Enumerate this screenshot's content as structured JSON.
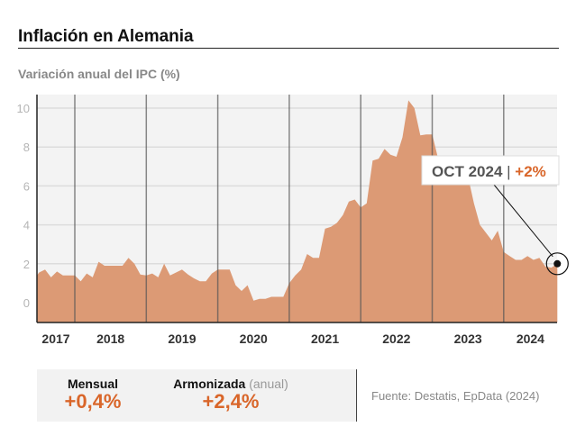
{
  "title": "Inflación en Alemania",
  "subtitle": "Variación anual del IPC (%)",
  "chart_data": {
    "type": "area",
    "title": "Inflación en Alemania",
    "subtitle": "Variación anual del IPC (%)",
    "ylim": [
      -1,
      11
    ],
    "yticks": [
      0,
      2,
      4,
      6,
      8,
      10
    ],
    "xticks": [
      "2017",
      "2018",
      "2019",
      "2020",
      "2021",
      "2022",
      "2023",
      "2024"
    ],
    "grid": true,
    "color": "#dc9a75",
    "x": [
      "2017-06",
      "2017-07",
      "2017-08",
      "2017-09",
      "2017-10",
      "2017-11",
      "2017-12",
      "2018-01",
      "2018-02",
      "2018-03",
      "2018-04",
      "2018-05",
      "2018-06",
      "2018-07",
      "2018-08",
      "2018-09",
      "2018-10",
      "2018-11",
      "2018-12",
      "2019-01",
      "2019-02",
      "2019-03",
      "2019-04",
      "2019-05",
      "2019-06",
      "2019-07",
      "2019-08",
      "2019-09",
      "2019-10",
      "2019-11",
      "2019-12",
      "2020-01",
      "2020-02",
      "2020-03",
      "2020-04",
      "2020-05",
      "2020-06",
      "2020-07",
      "2020-08",
      "2020-09",
      "2020-10",
      "2020-11",
      "2020-12",
      "2021-01",
      "2021-02",
      "2021-03",
      "2021-04",
      "2021-05",
      "2021-06",
      "2021-07",
      "2021-08",
      "2021-09",
      "2021-10",
      "2021-11",
      "2021-12",
      "2022-01",
      "2022-02",
      "2022-03",
      "2022-04",
      "2022-05",
      "2022-06",
      "2022-07",
      "2022-08",
      "2022-09",
      "2022-10",
      "2022-11",
      "2022-12",
      "2023-01",
      "2023-02",
      "2023-03",
      "2023-04",
      "2023-05",
      "2023-06",
      "2023-07",
      "2023-08",
      "2023-09",
      "2023-10",
      "2023-11",
      "2023-12",
      "2024-01",
      "2024-02",
      "2024-03",
      "2024-04",
      "2024-05",
      "2024-06",
      "2024-07",
      "2024-08",
      "2024-09",
      "2024-10"
    ],
    "values": [
      1.4,
      1.55,
      1.7,
      1.3,
      1.6,
      1.4,
      1.4,
      1.4,
      1.1,
      1.5,
      1.3,
      2.1,
      1.9,
      1.9,
      1.9,
      1.9,
      2.3,
      2.0,
      1.45,
      1.4,
      1.5,
      1.3,
      2.0,
      1.4,
      1.55,
      1.7,
      1.45,
      1.25,
      1.1,
      1.1,
      1.5,
      1.7,
      1.7,
      1.7,
      0.9,
      0.6,
      0.9,
      0.1,
      0.2,
      0.2,
      0.3,
      0.3,
      0.3,
      1.0,
      1.4,
      1.7,
      2.5,
      2.3,
      2.3,
      3.8,
      3.9,
      4.1,
      4.5,
      5.2,
      5.3,
      4.9,
      5.1,
      7.3,
      7.4,
      7.9,
      7.6,
      7.5,
      8.5,
      10.4,
      10.0,
      8.6,
      8.65,
      8.65,
      7.4,
      7.1,
      6.8,
      6.7,
      6.6,
      6.5,
      5.1,
      4.0,
      3.6,
      3.2,
      3.7,
      2.6,
      2.4,
      2.2,
      2.2,
      2.4,
      2.2,
      2.3,
      1.85,
      1.8,
      2.0
    ]
  },
  "callout": {
    "date": "OCT 2024",
    "sep": "|",
    "value": "+2%"
  },
  "stats": [
    {
      "label": "Mensual",
      "value": "+0,4%"
    },
    {
      "label": "Armonizada",
      "label_note": "(anual)",
      "value": "+2,4%"
    }
  ],
  "source": "Fuente: Destatis, EpData (2024)"
}
